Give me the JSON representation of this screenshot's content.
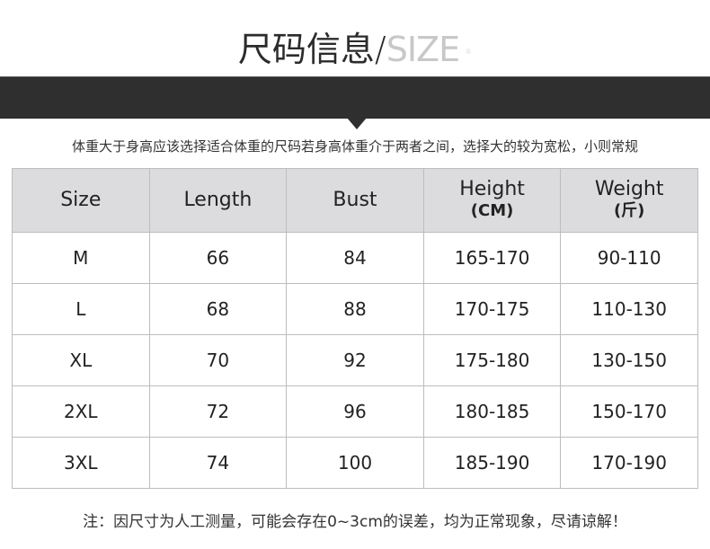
{
  "title": {
    "cn": "尺码信息",
    "slash": "/",
    "en": "SIZE"
  },
  "subtitle": "体重大于身高应该选择适合体重的尺码若身高体重介于两者之间，选择大的较为宽松，小则常规",
  "table": {
    "headers": [
      {
        "label": "Size",
        "unit": ""
      },
      {
        "label": "Length",
        "unit": ""
      },
      {
        "label": "Bust",
        "unit": ""
      },
      {
        "label": "Height",
        "unit": "(CM)"
      },
      {
        "label": "Weight",
        "unit": "(斤)"
      }
    ],
    "rows": [
      [
        "M",
        "66",
        "84",
        "165-170",
        "90-110"
      ],
      [
        "L",
        "68",
        "88",
        "170-175",
        "110-130"
      ],
      [
        "XL",
        "70",
        "92",
        "175-180",
        "130-150"
      ],
      [
        "2XL",
        "72",
        "96",
        "180-185",
        "150-170"
      ],
      [
        "3XL",
        "74",
        "100",
        "185-190",
        "170-190"
      ]
    ]
  },
  "note": "注：因尺寸为人工测量，可能会存在0~3cm的误差，均为正常现象，尽请谅解！",
  "colors": {
    "band": "#2f2f2f",
    "header_bg": "#dcdcdf",
    "title_en": "#c8c8c8"
  }
}
